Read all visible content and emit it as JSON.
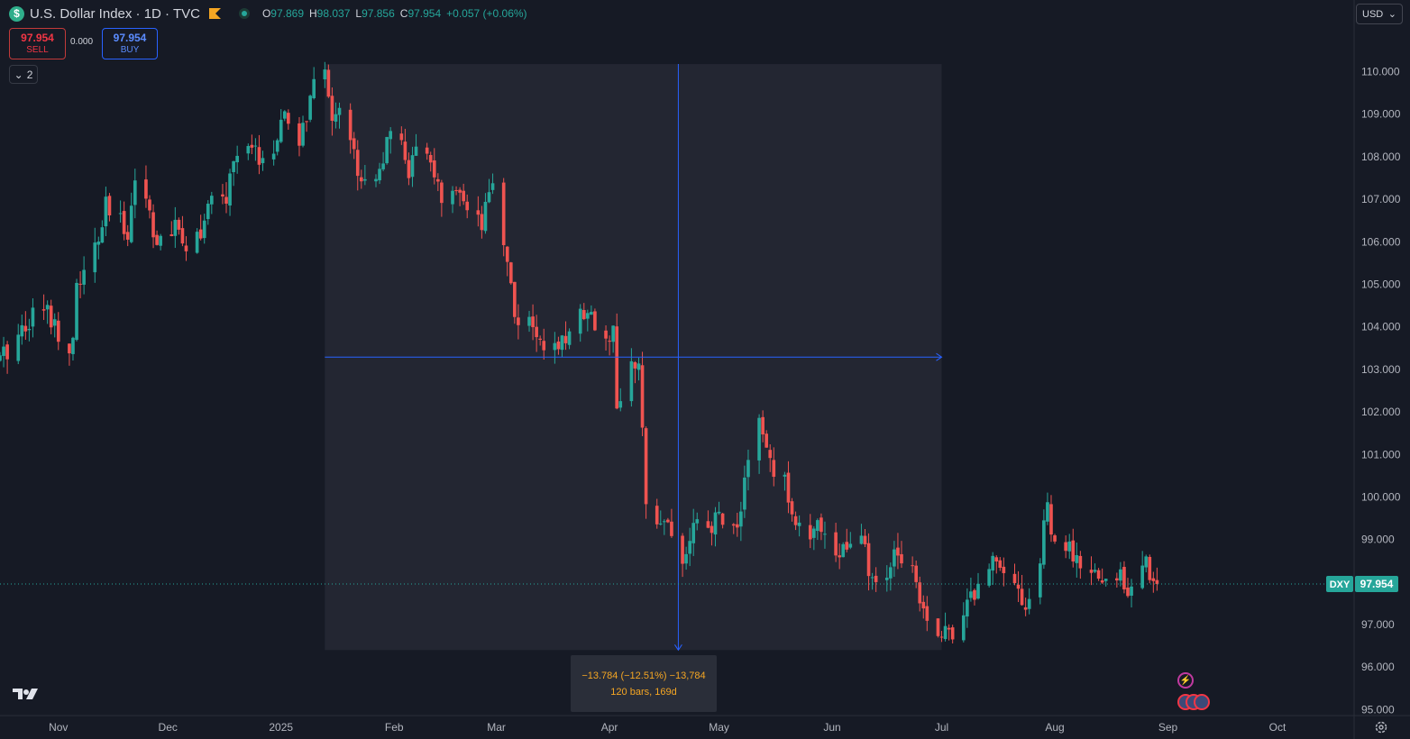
{
  "header": {
    "logo_glyph": "$",
    "title": "U.S. Dollar Index · 1D · TVC",
    "ohlc": [
      {
        "k": "O",
        "v": "97.869"
      },
      {
        "k": "H",
        "v": "98.037"
      },
      {
        "k": "L",
        "v": "97.856"
      },
      {
        "k": "C",
        "v": "97.954"
      },
      {
        "k": "",
        "v": "+0.057 (+0.06%)"
      }
    ]
  },
  "trade": {
    "sell_price": "97.954",
    "sell_label": "SELL",
    "spread": "0.000",
    "buy_price": "97.954",
    "buy_label": "BUY"
  },
  "indicators_toggle": {
    "count": "2"
  },
  "currency": {
    "selected": "USD"
  },
  "symbol_tag": {
    "ticker": "DXY",
    "price": "97.954"
  },
  "measure": {
    "line1": "−13.784 (−12.51%) −13,784",
    "line2": "120 bars, 169d"
  },
  "colors": {
    "background": "#161a25",
    "up": "#26a69a",
    "down": "#ef5350",
    "measure_line": "#2962ff",
    "measure_fill": "#232632",
    "measure_text": "#f5a623"
  },
  "icons": [
    "currency-logo-icon",
    "flag-icon",
    "market-open-icon",
    "chevron-down-icon",
    "tradingview-logo-icon",
    "settings-gear-icon",
    "event-lightning-icon",
    "event-flag-icon"
  ],
  "chart_data": {
    "type": "candlestick",
    "ylim": [
      94.86,
      111.05
    ],
    "y_ticks": [
      "95.000",
      "96.000",
      "97.000",
      "98.000",
      "99.000",
      "100.000",
      "101.000",
      "102.000",
      "103.000",
      "104.000",
      "105.000",
      "106.000",
      "107.000",
      "108.000",
      "109.000",
      "110.000"
    ],
    "x_ticks": [
      "Nov",
      "Dec",
      "2025",
      "Feb",
      "Mar",
      "Apr",
      "May",
      "Jun",
      "Jul",
      "Aug",
      "Sep",
      "Oct"
    ],
    "x_tick_dates": [
      "2024-11-01",
      "2024-12-01",
      "2025-01-01",
      "2025-02-01",
      "2025-03-01",
      "2025-04-01",
      "2025-05-01",
      "2025-06-01",
      "2025-07-01",
      "2025-08-01",
      "2025-09-01",
      "2025-10-01"
    ],
    "x_range": [
      "2024-10-16",
      "2025-10-22"
    ],
    "last_price": 97.954,
    "measure_range": {
      "x_start": "2025-01-13",
      "x_end": "2025-07-01",
      "y_start": 110.18,
      "y_end": 96.4
    },
    "anchors": [
      [
        "2024-10-16",
        103.2
      ],
      [
        "2024-10-22",
        104.0
      ],
      [
        "2024-10-25",
        104.3
      ],
      [
        "2024-10-29",
        104.4
      ],
      [
        "2024-11-01",
        103.9
      ],
      [
        "2024-11-05",
        103.5
      ],
      [
        "2024-11-06",
        105.0
      ],
      [
        "2024-11-08",
        105.2
      ],
      [
        "2024-11-12",
        106.0
      ],
      [
        "2024-11-14",
        106.8
      ],
      [
        "2024-11-18",
        106.4
      ],
      [
        "2024-11-20",
        106.3
      ],
      [
        "2024-11-22",
        107.5
      ],
      [
        "2024-11-26",
        106.8
      ],
      [
        "2024-11-28",
        105.9
      ],
      [
        "2024-12-02",
        106.2
      ],
      [
        "2024-12-04",
        106.3
      ],
      [
        "2024-12-06",
        106.0
      ],
      [
        "2024-12-10",
        106.3
      ],
      [
        "2024-12-13",
        106.9
      ],
      [
        "2024-12-17",
        107.0
      ],
      [
        "2024-12-19",
        108.0
      ],
      [
        "2024-12-23",
        108.1
      ],
      [
        "2024-12-27",
        108.0
      ],
      [
        "2024-12-31",
        108.2
      ],
      [
        "2025-01-02",
        109.0
      ],
      [
        "2025-01-06",
        108.3
      ],
      [
        "2025-01-08",
        109.0
      ],
      [
        "2025-01-10",
        109.6
      ],
      [
        "2025-01-13",
        109.9
      ],
      [
        "2025-01-15",
        109.0
      ],
      [
        "2025-01-17",
        109.3
      ],
      [
        "2025-01-21",
        108.0
      ],
      [
        "2025-01-24",
        107.4
      ],
      [
        "2025-01-28",
        107.8
      ],
      [
        "2025-01-31",
        108.4
      ],
      [
        "2025-02-03",
        108.3
      ],
      [
        "2025-02-05",
        107.7
      ],
      [
        "2025-02-07",
        108.0
      ],
      [
        "2025-02-11",
        108.0
      ],
      [
        "2025-02-14",
        106.8
      ],
      [
        "2025-02-18",
        107.1
      ],
      [
        "2025-02-21",
        106.6
      ],
      [
        "2025-02-25",
        106.3
      ],
      [
        "2025-02-28",
        107.4
      ],
      [
        "2025-03-04",
        105.6
      ],
      [
        "2025-03-06",
        104.3
      ],
      [
        "2025-03-11",
        103.9
      ],
      [
        "2025-03-14",
        103.7
      ],
      [
        "2025-03-18",
        103.3
      ],
      [
        "2025-03-21",
        104.0
      ],
      [
        "2025-03-26",
        104.5
      ],
      [
        "2025-03-28",
        104.1
      ],
      [
        "2025-04-02",
        103.8
      ],
      [
        "2025-04-03",
        102.2
      ],
      [
        "2025-04-07",
        103.0
      ],
      [
        "2025-04-09",
        102.9
      ],
      [
        "2025-04-11",
        100.1
      ],
      [
        "2025-04-14",
        99.6
      ],
      [
        "2025-04-17",
        99.4
      ],
      [
        "2025-04-21",
        98.4
      ],
      [
        "2025-04-24",
        99.3
      ],
      [
        "2025-04-28",
        99.1
      ],
      [
        "2025-05-01",
        99.6
      ],
      [
        "2025-05-06",
        99.2
      ],
      [
        "2025-05-08",
        100.5
      ],
      [
        "2025-05-12",
        101.7
      ],
      [
        "2025-05-15",
        100.8
      ],
      [
        "2025-05-19",
        100.3
      ],
      [
        "2025-05-22",
        99.5
      ],
      [
        "2025-05-26",
        98.9
      ],
      [
        "2025-05-29",
        99.4
      ],
      [
        "2025-06-02",
        98.7
      ],
      [
        "2025-06-05",
        98.8
      ],
      [
        "2025-06-09",
        99.0
      ],
      [
        "2025-06-12",
        97.9
      ],
      [
        "2025-06-16",
        98.1
      ],
      [
        "2025-06-19",
        98.8
      ],
      [
        "2025-06-23",
        98.4
      ],
      [
        "2025-06-26",
        97.4
      ],
      [
        "2025-06-30",
        96.9
      ],
      [
        "2025-07-01",
        96.7
      ],
      [
        "2025-07-04",
        96.9
      ],
      [
        "2025-07-08",
        97.6
      ],
      [
        "2025-07-11",
        97.8
      ],
      [
        "2025-07-15",
        98.6
      ],
      [
        "2025-07-17",
        98.6
      ],
      [
        "2025-07-21",
        98.0
      ],
      [
        "2025-07-24",
        97.4
      ],
      [
        "2025-07-28",
        98.5
      ],
      [
        "2025-07-30",
        99.9
      ],
      [
        "2025-08-01",
        98.7
      ],
      [
        "2025-08-05",
        98.8
      ],
      [
        "2025-08-08",
        98.2
      ],
      [
        "2025-08-12",
        98.2
      ],
      [
        "2025-08-15",
        97.9
      ],
      [
        "2025-08-19",
        98.2
      ],
      [
        "2025-08-22",
        97.8
      ],
      [
        "2025-08-26",
        98.4
      ],
      [
        "2025-08-29",
        97.954
      ]
    ]
  }
}
